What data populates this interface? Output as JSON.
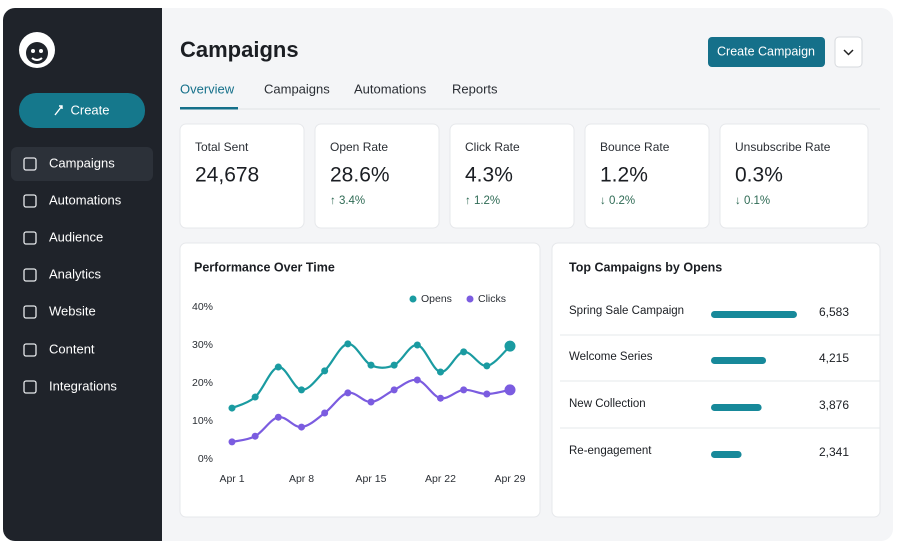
{
  "sidebar": {
    "create_button": "Create",
    "nav": [
      "Campaigns",
      "Automations",
      "Audience",
      "Analytics",
      "Website",
      "Content",
      "Integrations"
    ]
  },
  "header": {
    "title": "Campaigns",
    "primary_button": "Create Campaign"
  },
  "tabs": [
    "Overview",
    "Campaigns",
    "Automations",
    "Reports"
  ],
  "stats": [
    {
      "label": "Total Sent",
      "value": "24,678"
    },
    {
      "label": "Open Rate",
      "value": "28.6%",
      "change": "↑ 3.4%"
    },
    {
      "label": "Click Rate",
      "value": "4.3%",
      "change": "↑ 1.2%"
    },
    {
      "label": "Bounce Rate",
      "value": "1.2%",
      "change": "↓ 0.2%"
    },
    {
      "label": "Unsubscribe Rate",
      "value": "0.3%",
      "change": "↓ 0.1%"
    }
  ],
  "performance_chart": {
    "type": "line",
    "title": "Performance Over Time",
    "categories": [
      "Apr 1",
      null,
      null,
      "Apr 8",
      null,
      null,
      "Apr 15",
      null,
      null,
      "Apr 22",
      null,
      null,
      "Apr 29"
    ],
    "series": [
      {
        "name": "Opens",
        "color": "#1a9ba1",
        "values": [
          13.4,
          16.3,
          24.2,
          18.2,
          23.2,
          30.3,
          24.7,
          24.7,
          30,
          22.9,
          28.2,
          24.5,
          29.7
        ]
      },
      {
        "name": "Clicks",
        "color": "#7b5ce0",
        "values": [
          4.5,
          6,
          11,
          8.4,
          12.1,
          17.4,
          15,
          18.2,
          20.8,
          16,
          18.2,
          17.1,
          18.2
        ]
      }
    ],
    "ylim": [
      0,
      40
    ],
    "yticks": [
      {
        "value": 0,
        "label": "0%"
      },
      {
        "value": 10,
        "label": "10%"
      },
      {
        "value": 20,
        "label": "20%"
      },
      {
        "value": 30,
        "label": "30%"
      },
      {
        "value": 40,
        "label": "40%"
      }
    ],
    "grid": false,
    "legend": "top-right"
  },
  "top_campaigns": {
    "type": "bar",
    "title": "Top Campaigns by Opens",
    "categories": [
      "Spring Sale Campaign",
      "Welcome Series",
      "New Collection",
      "Re-engagement"
    ],
    "values": [
      6583,
      4215,
      3876,
      2341
    ],
    "value_labels": [
      "6,583",
      "4,215",
      "3,876",
      "2,341"
    ],
    "color": "#17899a"
  }
}
